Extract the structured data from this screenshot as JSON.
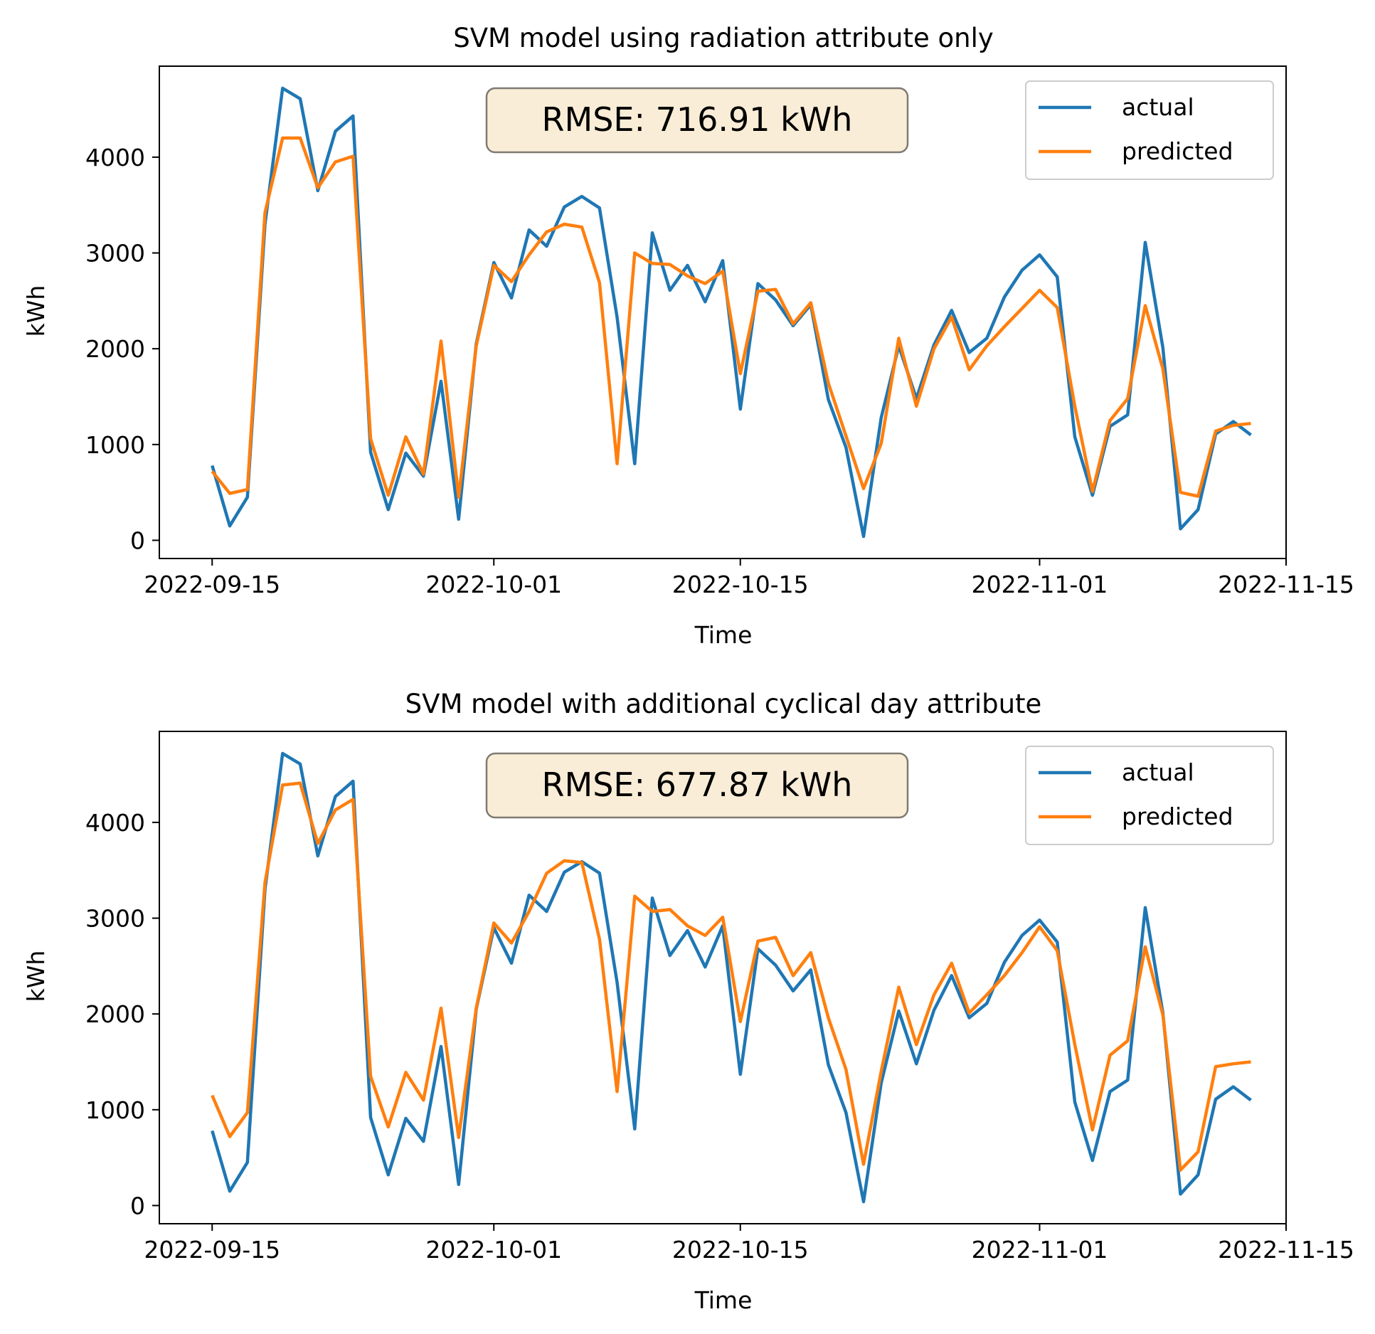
{
  "colors": {
    "actual": "#1f77b4",
    "predicted": "#ff7f0e",
    "rmse_box_fill": "#f9edd7",
    "rmse_box_edge": "#7f7a72"
  },
  "chart_data": [
    {
      "type": "line",
      "title": "SVM model using radiation attribute only",
      "xlabel": "Time",
      "ylabel": "kWh",
      "annotation": "RMSE: 716.91 kWh",
      "legend": "top-right",
      "legend_labels": [
        "actual",
        "predicted"
      ],
      "x_ticks": [
        "2022-09-15",
        "2022-10-01",
        "2022-10-15",
        "2022-11-01",
        "2022-11-15"
      ],
      "y_ticks": [
        "0",
        "1000",
        "2000",
        "3000",
        "4000"
      ],
      "x_range": [
        "2022-09-12",
        "2022-11-15"
      ],
      "y_range": [
        -190,
        4950
      ],
      "x": [
        "2022-09-15",
        "2022-09-16",
        "2022-09-17",
        "2022-09-18",
        "2022-09-19",
        "2022-09-20",
        "2022-09-21",
        "2022-09-22",
        "2022-09-23",
        "2022-09-24",
        "2022-09-25",
        "2022-09-26",
        "2022-09-27",
        "2022-09-28",
        "2022-09-29",
        "2022-09-30",
        "2022-10-01",
        "2022-10-02",
        "2022-10-03",
        "2022-10-04",
        "2022-10-05",
        "2022-10-06",
        "2022-10-07",
        "2022-10-08",
        "2022-10-09",
        "2022-10-10",
        "2022-10-11",
        "2022-10-12",
        "2022-10-13",
        "2022-10-14",
        "2022-10-15",
        "2022-10-16",
        "2022-10-17",
        "2022-10-18",
        "2022-10-19",
        "2022-10-20",
        "2022-10-21",
        "2022-10-22",
        "2022-10-23",
        "2022-10-24",
        "2022-10-25",
        "2022-10-26",
        "2022-10-27",
        "2022-10-28",
        "2022-10-29",
        "2022-10-30",
        "2022-10-31",
        "2022-11-01",
        "2022-11-02",
        "2022-11-03",
        "2022-11-04",
        "2022-11-05",
        "2022-11-06",
        "2022-11-07",
        "2022-11-08",
        "2022-11-09",
        "2022-11-10",
        "2022-11-11",
        "2022-11-12",
        "2022-11-13",
        "2022-11-14"
      ],
      "series": [
        {
          "name": "actual",
          "values": [
            780,
            150,
            450,
            3300,
            4720,
            4610,
            3650,
            4270,
            4430,
            920,
            320,
            910,
            670,
            1660,
            220,
            2050,
            2900,
            2530,
            3240,
            3070,
            3480,
            3590,
            3470,
            2330,
            800,
            3210,
            2610,
            2870,
            2490,
            2920,
            1370,
            2680,
            2510,
            2240,
            2460,
            1470,
            970,
            40,
            1280,
            2030,
            1480,
            2040,
            2400,
            1960,
            2110,
            2540,
            2820,
            2980,
            2750,
            1080,
            470,
            1190,
            1310,
            3110,
            2010,
            120,
            320,
            1110,
            1240,
            1100,
            1100
          ],
          "end_index": 59
        },
        {
          "name": "predicted",
          "values": [
            720,
            490,
            530,
            3420,
            4200,
            4200,
            3680,
            3950,
            4010,
            1060,
            470,
            1080,
            690,
            2080,
            450,
            2030,
            2870,
            2700,
            2980,
            3220,
            3300,
            3270,
            2690,
            800,
            3000,
            2890,
            2880,
            2760,
            2680,
            2810,
            1740,
            2600,
            2620,
            2260,
            2480,
            1640,
            1090,
            540,
            1010,
            2110,
            1400,
            2000,
            2330,
            1780,
            2030,
            2230,
            2420,
            2610,
            2430,
            1400,
            510,
            1250,
            1480,
            2450,
            1790,
            500,
            460,
            1140,
            1200,
            1220,
            1220
          ],
          "end_index": 59
        }
      ]
    },
    {
      "type": "line",
      "title": "SVM model with additional cyclical day attribute",
      "xlabel": "Time",
      "ylabel": "kWh",
      "annotation": "RMSE: 677.87 kWh",
      "legend": "top-right",
      "legend_labels": [
        "actual",
        "predicted"
      ],
      "x_ticks": [
        "2022-09-15",
        "2022-10-01",
        "2022-10-15",
        "2022-11-01",
        "2022-11-15"
      ],
      "y_ticks": [
        "0",
        "1000",
        "2000",
        "3000",
        "4000"
      ],
      "x_range": [
        "2022-09-12",
        "2022-11-15"
      ],
      "y_range": [
        -190,
        4950
      ],
      "x": [
        "2022-09-15",
        "2022-09-16",
        "2022-09-17",
        "2022-09-18",
        "2022-09-19",
        "2022-09-20",
        "2022-09-21",
        "2022-09-22",
        "2022-09-23",
        "2022-09-24",
        "2022-09-25",
        "2022-09-26",
        "2022-09-27",
        "2022-09-28",
        "2022-09-29",
        "2022-09-30",
        "2022-10-01",
        "2022-10-02",
        "2022-10-03",
        "2022-10-04",
        "2022-10-05",
        "2022-10-06",
        "2022-10-07",
        "2022-10-08",
        "2022-10-09",
        "2022-10-10",
        "2022-10-11",
        "2022-10-12",
        "2022-10-13",
        "2022-10-14",
        "2022-10-15",
        "2022-10-16",
        "2022-10-17",
        "2022-10-18",
        "2022-10-19",
        "2022-10-20",
        "2022-10-21",
        "2022-10-22",
        "2022-10-23",
        "2022-10-24",
        "2022-10-25",
        "2022-10-26",
        "2022-10-27",
        "2022-10-28",
        "2022-10-29",
        "2022-10-30",
        "2022-10-31",
        "2022-11-01",
        "2022-11-02",
        "2022-11-03",
        "2022-11-04",
        "2022-11-05",
        "2022-11-06",
        "2022-11-07",
        "2022-11-08",
        "2022-11-09",
        "2022-11-10",
        "2022-11-11",
        "2022-11-12",
        "2022-11-13",
        "2022-11-14"
      ],
      "series": [
        {
          "name": "actual",
          "values": [
            780,
            150,
            450,
            3300,
            4720,
            4610,
            3650,
            4270,
            4430,
            920,
            320,
            910,
            670,
            1660,
            220,
            2050,
            2900,
            2530,
            3240,
            3070,
            3480,
            3590,
            3470,
            2330,
            800,
            3210,
            2610,
            2870,
            2490,
            2920,
            1370,
            2680,
            2510,
            2240,
            2460,
            1470,
            970,
            40,
            1280,
            2030,
            1480,
            2040,
            2400,
            1960,
            2110,
            2540,
            2820,
            2980,
            2750,
            1080,
            470,
            1190,
            1310,
            3110,
            2010,
            120,
            320,
            1110,
            1240,
            1100,
            1100
          ],
          "end_index": 59
        },
        {
          "name": "predicted",
          "values": [
            1150,
            720,
            970,
            3370,
            4390,
            4410,
            3780,
            4130,
            4240,
            1350,
            820,
            1390,
            1100,
            2060,
            710,
            2060,
            2950,
            2740,
            3070,
            3470,
            3600,
            3580,
            2780,
            1190,
            3230,
            3070,
            3090,
            2920,
            2820,
            3010,
            1920,
            2760,
            2800,
            2400,
            2640,
            1960,
            1420,
            430,
            1400,
            2280,
            1680,
            2200,
            2530,
            2010,
            2200,
            2400,
            2640,
            2910,
            2660,
            1680,
            790,
            1570,
            1720,
            2700,
            1990,
            370,
            560,
            1450,
            1480,
            1500,
            1500
          ],
          "end_index": 59
        }
      ]
    }
  ]
}
